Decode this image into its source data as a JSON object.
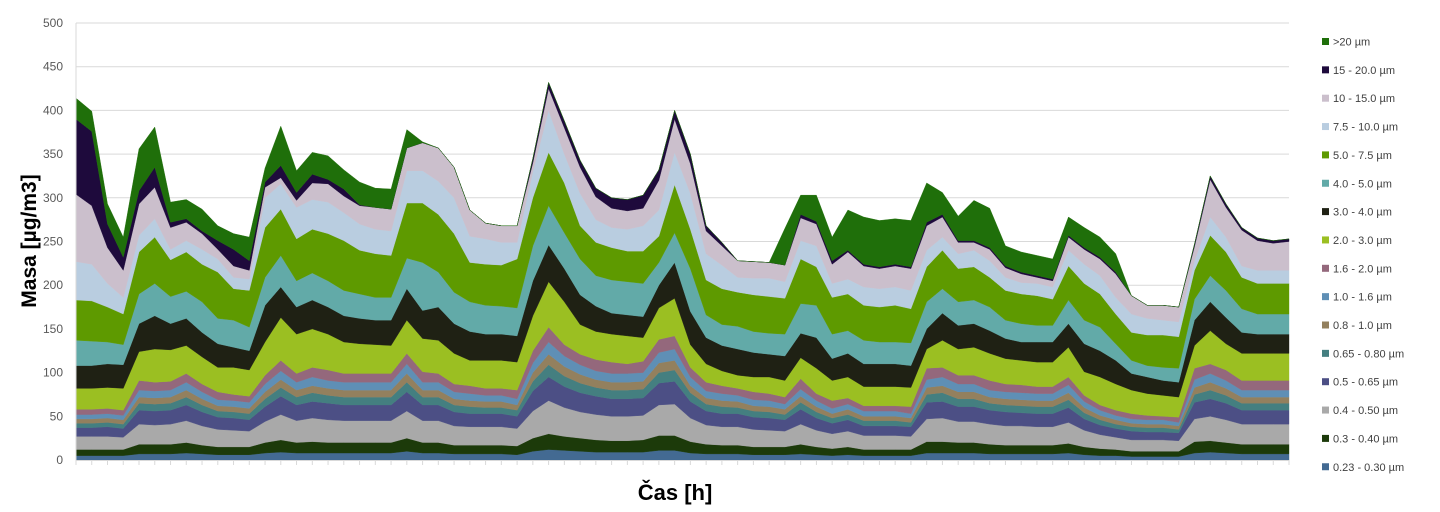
{
  "chart_data": {
    "type": "area",
    "stacked": true,
    "title": "",
    "xlabel": "Čas [h]",
    "ylabel": "Masa [µg/m3]",
    "ylim": [
      0,
      500
    ],
    "yticks": [
      "0",
      "50",
      "100",
      "150",
      "200",
      "250",
      "300",
      "350",
      "400",
      "450",
      "500"
    ],
    "grid": true,
    "legend_position": "right",
    "n_points": 78,
    "series": [
      {
        "name": ">20 µm",
        "color": "#1f6f0a",
        "values": [
          24,
          23,
          23,
          23,
          48,
          46,
          23,
          22,
          25,
          17,
          18,
          27,
          16,
          45,
          25,
          25,
          27,
          22,
          26,
          22,
          23,
          21,
          1,
          0,
          0,
          0,
          0,
          0,
          0,
          0,
          0,
          0,
          0,
          0,
          0,
          0,
          0,
          0,
          0,
          0,
          0,
          0,
          0,
          0,
          0,
          42,
          22,
          30,
          27,
          46,
          54,
          53,
          52,
          53,
          45,
          25,
          28,
          46,
          45,
          23,
          23,
          23,
          23,
          21,
          23,
          23,
          21,
          0,
          0,
          0,
          0,
          0,
          0,
          0,
          0,
          0,
          0,
          0
        ]
      },
      {
        "name": "15 - 20.0 µm",
        "color": "#1e0a3c",
        "values": [
          86,
          85,
          27,
          15,
          15,
          23,
          6,
          4,
          3,
          10,
          19,
          11,
          6,
          14,
          9,
          10,
          5,
          8,
          1,
          0,
          0,
          0,
          0,
          0,
          0,
          0,
          0,
          0,
          0,
          5,
          7,
          8,
          8,
          10,
          12,
          13,
          15,
          12,
          10,
          11,
          6,
          4,
          0,
          0,
          0,
          0,
          4,
          3,
          4,
          2,
          2,
          2,
          2,
          2,
          4,
          3,
          2,
          2,
          2,
          2,
          2,
          2,
          2,
          2,
          2,
          2,
          2,
          0,
          0,
          0,
          0,
          3,
          4,
          4,
          3,
          3,
          3,
          3
        ]
      },
      {
        "name": "10 - 15.0 µm",
        "color": "#cbbfcc",
        "values": [
          77,
          67,
          41,
          31,
          36,
          36,
          25,
          21,
          18,
          11,
          13,
          10,
          12,
          7,
          8,
          19,
          21,
          19,
          21,
          25,
          25,
          26,
          32,
          38,
          35,
          30,
          18,
          19,
          19,
          10,
          25,
          30,
          30,
          26,
          22,
          21,
          20,
          34,
          38,
          34,
          26,
          22,
          19,
          19,
          18,
          19,
          26,
          25,
          22,
          31,
          24,
          23,
          24,
          25,
          28,
          23,
          13,
          9,
          13,
          11,
          10,
          7,
          7,
          15,
          17,
          19,
          27,
          21,
          15,
          17,
          17,
          16,
          43,
          34,
          41,
          34,
          31,
          33
        ]
      },
      {
        "name": "7.5 - 10.0 µm",
        "color": "#b9cde0",
        "values": [
          44,
          42,
          27,
          19,
          19,
          21,
          12,
          13,
          17,
          15,
          13,
          13,
          34,
          29,
          36,
          34,
          36,
          32,
          30,
          28,
          28,
          37,
          37,
          38,
          41,
          30,
          29,
          26,
          19,
          30,
          48,
          33,
          37,
          26,
          23,
          25,
          29,
          30,
          37,
          41,
          30,
          27,
          17,
          19,
          21,
          19,
          21,
          24,
          16,
          17,
          21,
          21,
          21,
          21,
          19,
          15,
          17,
          19,
          19,
          15,
          13,
          14,
          14,
          18,
          22,
          21,
          19,
          21,
          19,
          17,
          17,
          11,
          21,
          17,
          13,
          15,
          15,
          15
        ]
      },
      {
        "name": "5.0 - 7.5 µm",
        "color": "#5e9a00",
        "values": [
          46,
          46,
          40,
          35,
          48,
          53,
          42,
          45,
          43,
          53,
          36,
          42,
          57,
          53,
          48,
          50,
          54,
          57,
          50,
          50,
          48,
          63,
          68,
          66,
          67,
          45,
          47,
          47,
          56,
          55,
          61,
          57,
          38,
          38,
          37,
          35,
          37,
          30,
          55,
          45,
          40,
          41,
          39,
          42,
          42,
          41,
          51,
          44,
          42,
          42,
          40,
          40,
          42,
          39,
          40,
          44,
          38,
          38,
          34,
          34,
          34,
          34,
          30,
          39,
          42,
          38,
          34,
          32,
          35,
          37,
          36,
          33,
          46,
          44,
          36,
          35,
          35,
          35
        ]
      },
      {
        "name": "4.0 - 5.0 µm",
        "color": "#62aaa8",
        "values": [
          29,
          28,
          25,
          23,
          34,
          37,
          31,
          31,
          35,
          29,
          31,
          27,
          32,
          36,
          30,
          31,
          30,
          29,
          28,
          26,
          26,
          35,
          55,
          40,
          36,
          34,
          33,
          32,
          32,
          40,
          45,
          41,
          41,
          35,
          38,
          38,
          38,
          26,
          34,
          49,
          26,
          24,
          26,
          24,
          24,
          25,
          34,
          37,
          28,
          26,
          27,
          25,
          25,
          26,
          31,
          28,
          27,
          27,
          27,
          21,
          21,
          19,
          19,
          27,
          27,
          27,
          19,
          15,
          13,
          15,
          16,
          24,
          30,
          31,
          27,
          23,
          23,
          23
        ]
      },
      {
        "name": "3.0 - 4.0 µm",
        "color": "#1f2114",
        "values": [
          26,
          26,
          27,
          27,
          32,
          38,
          30,
          31,
          28,
          27,
          23,
          22,
          42,
          35,
          31,
          33,
          31,
          30,
          29,
          28,
          29,
          36,
          32,
          38,
          34,
          33,
          30,
          30,
          30,
          40,
          42,
          38,
          34,
          29,
          24,
          24,
          24,
          26,
          41,
          38,
          30,
          29,
          30,
          28,
          26,
          28,
          28,
          35,
          25,
          27,
          26,
          26,
          26,
          25,
          23,
          31,
          27,
          27,
          26,
          23,
          21,
          23,
          23,
          27,
          32,
          30,
          27,
          19,
          19,
          17,
          17,
          29,
          33,
          30,
          24,
          22,
          22,
          22
        ]
      },
      {
        "name": "2.0 - 3.0 µm",
        "color": "#9bbf22",
        "values": [
          24,
          24,
          24,
          25,
          33,
          38,
          36,
          32,
          31,
          28,
          31,
          30,
          38,
          49,
          45,
          44,
          41,
          36,
          34,
          33,
          32,
          38,
          38,
          38,
          35,
          29,
          32,
          32,
          32,
          40,
          52,
          49,
          34,
          32,
          32,
          32,
          27,
          36,
          43,
          26,
          21,
          17,
          15,
          17,
          19,
          19,
          24,
          29,
          23,
          24,
          22,
          22,
          22,
          22,
          22,
          31,
          30,
          32,
          31,
          29,
          28,
          28,
          28,
          34,
          27,
          32,
          30,
          27,
          25,
          24,
          23,
          26,
          38,
          30,
          31,
          31,
          31,
          31
        ]
      },
      {
        "name": "1.6 - 2.0 µm",
        "color": "#94687c",
        "values": [
          6,
          6,
          6,
          6,
          11,
          10,
          10,
          10,
          9,
          9,
          7,
          7,
          10,
          12,
          10,
          11,
          12,
          10,
          10,
          10,
          10,
          12,
          12,
          10,
          9,
          9,
          8,
          8,
          10,
          14,
          17,
          13,
          12,
          13,
          13,
          11,
          13,
          15,
          15,
          11,
          10,
          9,
          8,
          9,
          8,
          8,
          12,
          8,
          9,
          7,
          6,
          6,
          6,
          8,
          13,
          11,
          10,
          10,
          11,
          9,
          9,
          8,
          8,
          9,
          7,
          6,
          6,
          6,
          5,
          4,
          6,
          13,
          11,
          12,
          11,
          11,
          11,
          11
        ]
      },
      {
        "name": "1.0 - 1.6 µm",
        "color": "#5f8fb5",
        "values": [
          5,
          5,
          5,
          5,
          8,
          8,
          8,
          9,
          8,
          7,
          7,
          7,
          9,
          10,
          9,
          10,
          9,
          9,
          9,
          9,
          9,
          11,
          9,
          9,
          8,
          8,
          7,
          7,
          7,
          11,
          14,
          12,
          11,
          10,
          10,
          10,
          10,
          12,
          13,
          10,
          8,
          8,
          7,
          7,
          7,
          6,
          8,
          7,
          6,
          6,
          6,
          6,
          6,
          5,
          9,
          10,
          9,
          9,
          8,
          8,
          8,
          8,
          8,
          9,
          7,
          6,
          5,
          5,
          5,
          5,
          4,
          9,
          10,
          9,
          8,
          8,
          8,
          8
        ]
      },
      {
        "name": "0.8 - 1.0 µm",
        "color": "#93805e",
        "values": [
          5,
          5,
          5,
          5,
          7,
          7,
          7,
          8,
          7,
          6,
          6,
          6,
          8,
          9,
          8,
          8,
          8,
          8,
          8,
          8,
          8,
          10,
          8,
          8,
          7,
          7,
          7,
          7,
          6,
          10,
          12,
          11,
          10,
          9,
          9,
          9,
          9,
          11,
          11,
          8,
          7,
          7,
          7,
          6,
          6,
          6,
          7,
          6,
          5,
          6,
          5,
          5,
          5,
          5,
          8,
          8,
          8,
          8,
          7,
          7,
          7,
          7,
          7,
          8,
          6,
          5,
          5,
          4,
          4,
          4,
          4,
          8,
          9,
          8,
          7,
          7,
          7,
          7
        ]
      },
      {
        "name": "0.65 - 0.80 µm",
        "color": "#447f80",
        "values": [
          5,
          5,
          5,
          5,
          8,
          8,
          8,
          9,
          8,
          7,
          7,
          7,
          9,
          10,
          9,
          10,
          9,
          9,
          9,
          9,
          9,
          11,
          9,
          9,
          8,
          8,
          7,
          7,
          7,
          11,
          14,
          12,
          11,
          10,
          10,
          10,
          10,
          12,
          13,
          10,
          8,
          8,
          7,
          7,
          7,
          6,
          8,
          7,
          6,
          6,
          6,
          6,
          6,
          5,
          9,
          10,
          9,
          9,
          8,
          8,
          8,
          8,
          8,
          9,
          7,
          6,
          5,
          5,
          5,
          5,
          4,
          9,
          10,
          9,
          8,
          8,
          8,
          8
        ]
      },
      {
        "name": "0.5 - 0.65 µm",
        "color": "#4c4f85",
        "values": [
          10,
          10,
          11,
          10,
          16,
          16,
          16,
          18,
          16,
          14,
          14,
          13,
          17,
          21,
          18,
          19,
          19,
          18,
          18,
          18,
          18,
          22,
          18,
          18,
          16,
          15,
          15,
          15,
          14,
          23,
          27,
          24,
          22,
          21,
          20,
          20,
          20,
          25,
          26,
          19,
          16,
          15,
          15,
          14,
          14,
          13,
          17,
          14,
          12,
          13,
          11,
          11,
          11,
          11,
          19,
          19,
          17,
          17,
          16,
          16,
          15,
          15,
          15,
          17,
          13,
          11,
          10,
          10,
          9,
          9,
          9,
          19,
          20,
          19,
          16,
          16,
          16,
          16
        ]
      },
      {
        "name": "0.4 - 0.50 µm",
        "color": "#a9a9a9",
        "values": [
          15,
          15,
          15,
          14,
          23,
          22,
          23,
          25,
          22,
          20,
          19,
          18,
          24,
          29,
          25,
          27,
          26,
          25,
          25,
          25,
          25,
          31,
          25,
          25,
          22,
          21,
          21,
          21,
          20,
          31,
          38,
          33,
          30,
          29,
          28,
          28,
          28,
          35,
          36,
          27,
          22,
          21,
          21,
          20,
          19,
          18,
          23,
          19,
          17,
          18,
          16,
          16,
          16,
          15,
          26,
          27,
          24,
          24,
          23,
          22,
          22,
          21,
          21,
          24,
          19,
          16,
          14,
          13,
          13,
          13,
          12,
          26,
          28,
          26,
          23,
          23,
          23,
          23
        ]
      },
      {
        "name": "0.3 - 0.40 µm",
        "color": "#1c3a0a",
        "values": [
          7,
          7,
          7,
          7,
          11,
          11,
          11,
          12,
          10,
          9,
          9,
          9,
          12,
          14,
          12,
          13,
          12,
          12,
          12,
          12,
          12,
          15,
          12,
          12,
          10,
          10,
          10,
          10,
          10,
          15,
          18,
          16,
          15,
          14,
          13,
          13,
          14,
          17,
          17,
          13,
          11,
          10,
          10,
          9,
          9,
          9,
          11,
          9,
          8,
          9,
          7,
          7,
          7,
          7,
          13,
          13,
          12,
          12,
          11,
          10,
          10,
          10,
          10,
          11,
          9,
          8,
          7,
          6,
          6,
          6,
          6,
          13,
          13,
          12,
          11,
          11,
          11,
          11
        ]
      },
      {
        "name": "0.23 - 0.30 µm",
        "color": "#436a92",
        "values": [
          5,
          5,
          5,
          5,
          7,
          7,
          7,
          8,
          7,
          6,
          6,
          6,
          8,
          9,
          8,
          8,
          8,
          8,
          8,
          8,
          8,
          10,
          8,
          8,
          7,
          7,
          7,
          7,
          6,
          10,
          12,
          11,
          10,
          9,
          9,
          9,
          9,
          11,
          11,
          8,
          7,
          7,
          7,
          6,
          6,
          6,
          7,
          6,
          5,
          6,
          5,
          5,
          5,
          5,
          8,
          8,
          8,
          8,
          7,
          7,
          7,
          7,
          7,
          8,
          6,
          5,
          5,
          4,
          4,
          4,
          4,
          8,
          9,
          8,
          7,
          7,
          7,
          7
        ]
      }
    ]
  }
}
